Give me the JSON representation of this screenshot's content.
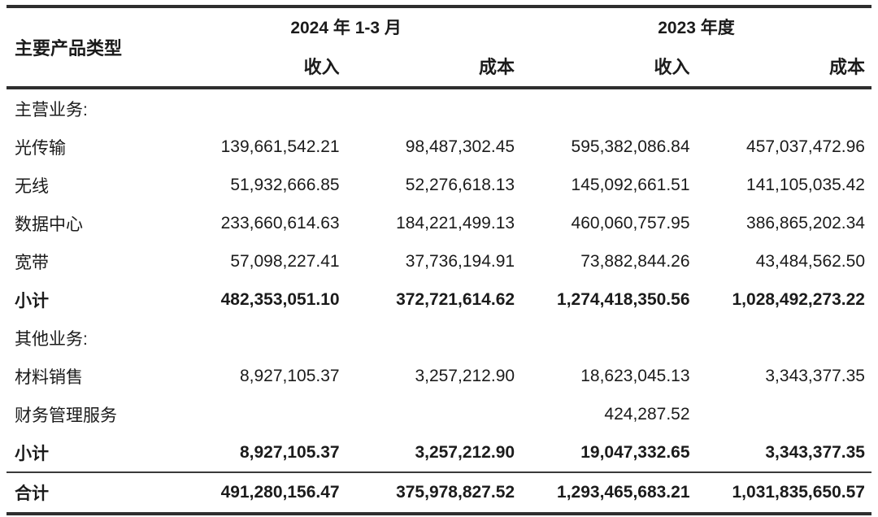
{
  "page": {
    "background": "#ffffff",
    "text_color": "#1b1b1b",
    "rule_color": "#2e2e2e"
  },
  "table": {
    "header": {
      "product_type": "主要产品类型",
      "groups": [
        {
          "label": "2024 年 1-3 月"
        },
        {
          "label": "2023 年度"
        }
      ],
      "sub_columns": [
        "收入",
        "成本",
        "收入",
        "成本"
      ]
    },
    "rows": [
      {
        "label": "主营业务:",
        "type": "section",
        "values": [
          "",
          "",
          "",
          ""
        ]
      },
      {
        "label": "光传输",
        "type": "data",
        "values": [
          "139,661,542.21",
          "98,487,302.45",
          "595,382,086.84",
          "457,037,472.96"
        ]
      },
      {
        "label": "无线",
        "type": "data",
        "values": [
          "51,932,666.85",
          "52,276,618.13",
          "145,092,661.51",
          "141,105,035.42"
        ]
      },
      {
        "label": "数据中心",
        "type": "data",
        "values": [
          "233,660,614.63",
          "184,221,499.13",
          "460,060,757.95",
          "386,865,202.34"
        ]
      },
      {
        "label": "宽带",
        "type": "data",
        "values": [
          "57,098,227.41",
          "37,736,194.91",
          "73,882,844.26",
          "43,484,562.50"
        ]
      },
      {
        "label": "小计",
        "type": "subtotal",
        "values": [
          "482,353,051.10",
          "372,721,614.62",
          "1,274,418,350.56",
          "1,028,492,273.22"
        ]
      },
      {
        "label": "其他业务:",
        "type": "section",
        "values": [
          "",
          "",
          "",
          ""
        ]
      },
      {
        "label": "材料销售",
        "type": "data",
        "values": [
          "8,927,105.37",
          "3,257,212.90",
          "18,623,045.13",
          "3,343,377.35"
        ]
      },
      {
        "label": "财务管理服务",
        "type": "data",
        "values": [
          "",
          "",
          "424,287.52",
          ""
        ]
      },
      {
        "label": "小计",
        "type": "subtotal",
        "values": [
          "8,927,105.37",
          "3,257,212.90",
          "19,047,332.65",
          "3,343,377.35"
        ]
      },
      {
        "label": "合计",
        "type": "total",
        "values": [
          "491,280,156.47",
          "375,978,827.52",
          "1,293,465,683.21",
          "1,031,835,650.57"
        ]
      }
    ]
  }
}
